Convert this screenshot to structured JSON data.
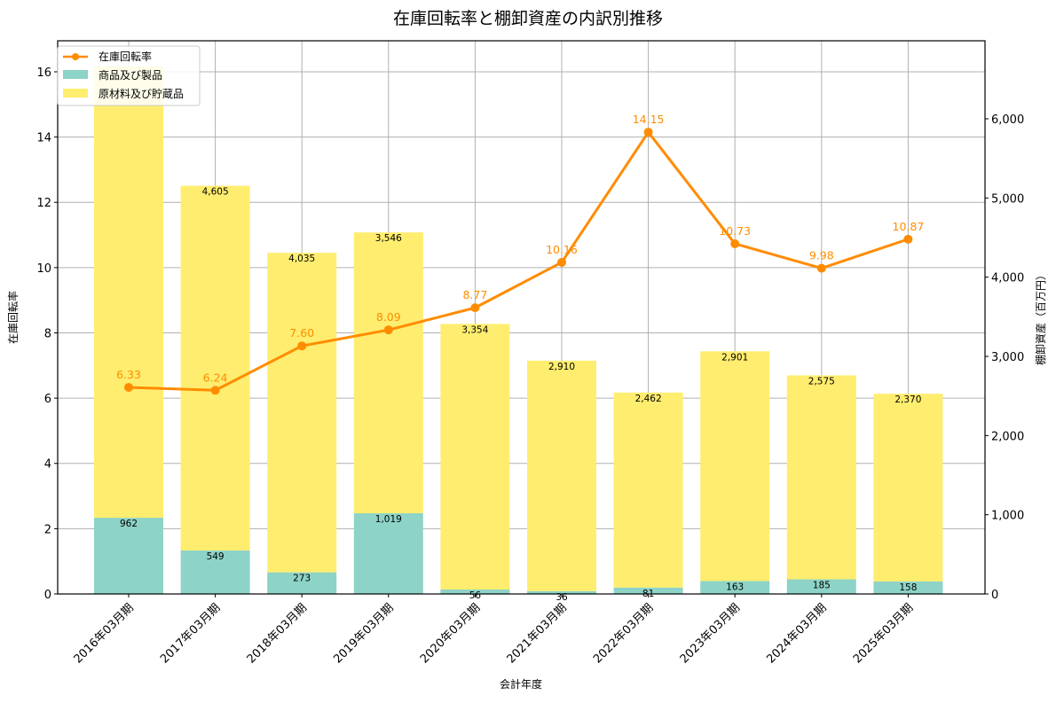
{
  "chart_data": {
    "type": "bar",
    "subtype": "stacked bar + line (dual axis)",
    "title": "在庫回転率と棚卸資産の内訳別推移",
    "xlabel": "会計年度",
    "ylabel_left": "在庫回転率",
    "ylabel_right": "棚卸資産（百万円）",
    "categories": [
      "2016年03月期",
      "2017年03月期",
      "2018年03月期",
      "2019年03月期",
      "2020年03月期",
      "2021年03月期",
      "2022年03月期",
      "2023年03月期",
      "2024年03月期",
      "2025年03月期"
    ],
    "series": [
      {
        "name": "在庫回転率",
        "type": "line",
        "axis": "left",
        "color": "#ff8c00",
        "values": [
          6.33,
          6.24,
          7.6,
          8.09,
          8.77,
          10.16,
          14.15,
          10.73,
          9.98,
          10.87
        ],
        "labels": [
          "6.33",
          "6.24",
          "7.60",
          "8.09",
          "8.77",
          "10.16",
          "14.15",
          "10.73",
          "9.98",
          "10.87"
        ]
      },
      {
        "name": "商品及び製品",
        "type": "bar",
        "axis": "right",
        "color": "#8dd3c7",
        "values": [
          962,
          549,
          273,
          1019,
          56,
          36,
          81,
          163,
          185,
          158
        ],
        "labels": [
          "962",
          "549",
          "273",
          "1,019",
          "56",
          "36",
          "81",
          "163",
          "185",
          "158"
        ]
      },
      {
        "name": "原材料及び貯蔵品",
        "type": "bar",
        "axis": "right",
        "stacked_on": "商品及び製品",
        "color": "#ffed6f",
        "values": [
          5700,
          4605,
          4035,
          3546,
          3354,
          2910,
          2462,
          2901,
          2575,
          2370
        ],
        "labels": [
          "",
          "4,605",
          "4,035",
          "3,546",
          "3,354",
          "2,910",
          "2,462",
          "2,901",
          "2,575",
          "2,370"
        ],
        "note": "2016 value label hidden behind legend; value estimated from bar height"
      }
    ],
    "ylim_left": [
      0,
      16.95
    ],
    "ylim_right": [
      0,
      6985
    ],
    "yticks_left": [
      0,
      2,
      4,
      6,
      8,
      10,
      12,
      14,
      16
    ],
    "yticks_right": [
      0,
      1000,
      2000,
      3000,
      4000,
      5000,
      6000
    ],
    "yticklabels_right": [
      "0",
      "1,000",
      "2,000",
      "3,000",
      "4,000",
      "5,000",
      "6,000"
    ],
    "grid": true,
    "legend_position": "upper left",
    "legend": [
      "在庫回転率",
      "商品及び製品",
      "原材料及び貯蔵品"
    ]
  }
}
